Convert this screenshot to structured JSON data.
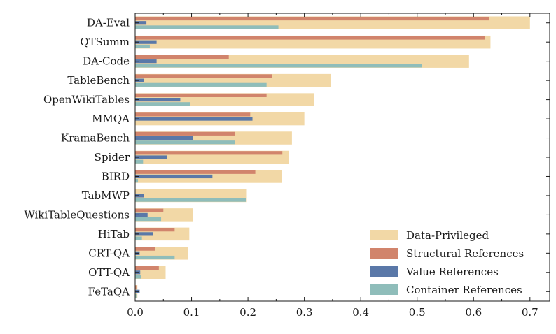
{
  "colors": {
    "Data-Privileged": "#f2d8a6",
    "Structural References": "#d1846c",
    "Value References": "#5a78a8",
    "Container References": "#8fbdba",
    "axis": "#1a1a1a"
  },
  "chart_data": {
    "type": "bar",
    "orientation": "horizontal",
    "title": "",
    "xlabel": "",
    "ylabel": "",
    "xlim": [
      0,
      0.735
    ],
    "xticks": [
      "0.0",
      "0.1",
      "0.2",
      "0.3",
      "0.4",
      "0.5",
      "0.6",
      "0.7"
    ],
    "grid": false,
    "legend_position": "bottom-right",
    "categories": [
      "DA-Eval",
      "QTSumm",
      "DA-Code",
      "TableBench",
      "OpenWikiTables",
      "MMQA",
      "KramaBench",
      "Spider",
      "BIRD",
      "TabMWP",
      "WikiTableQuestions",
      "HiTab",
      "CRT-QA",
      "OTT-QA",
      "FeTaQA"
    ],
    "series": [
      {
        "name": "Data-Privileged",
        "values": [
          0.7,
          0.63,
          0.592,
          0.347,
          0.317,
          0.3,
          0.278,
          0.272,
          0.26,
          0.198,
          0.102,
          0.096,
          0.094,
          0.054,
          0.004
        ]
      },
      {
        "name": "Structural References",
        "values": [
          0.627,
          0.62,
          0.166,
          0.243,
          0.233,
          0.204,
          0.177,
          0.261,
          0.213,
          0.0,
          0.05,
          0.07,
          0.036,
          0.042,
          0.002
        ]
      },
      {
        "name": "Value References",
        "values": [
          0.02,
          0.038,
          0.038,
          0.016,
          0.08,
          0.208,
          0.102,
          0.056,
          0.137,
          0.016,
          0.022,
          0.032,
          0.008,
          0.009,
          0.008
        ]
      },
      {
        "name": "Container References",
        "values": [
          0.254,
          0.026,
          0.508,
          0.233,
          0.098,
          0.0,
          0.177,
          0.014,
          0.005,
          0.197,
          0.046,
          0.012,
          0.07,
          0.01,
          0.002
        ]
      }
    ]
  }
}
